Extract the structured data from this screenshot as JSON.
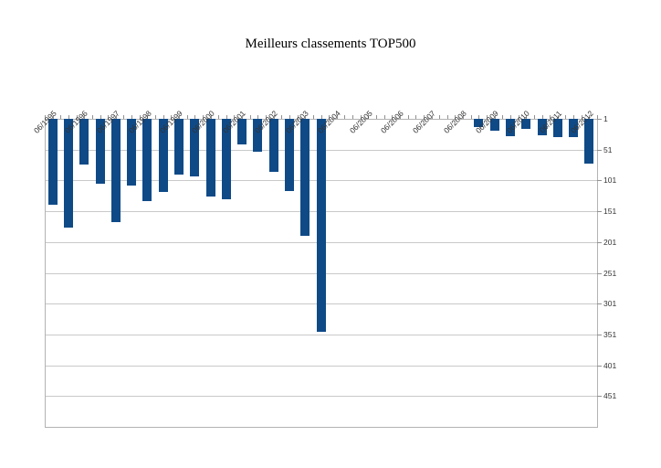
{
  "title": "Meilleurs classements TOP500",
  "chart_data": {
    "type": "bar",
    "title": "Meilleurs classements TOP500",
    "categories": [
      "06/1995",
      "11/1995",
      "06/1996",
      "11/1996",
      "06/1997",
      "11/1997",
      "06/1998",
      "11/1998",
      "06/1999",
      "11/1999",
      "06/2000",
      "11/2000",
      "06/2001",
      "11/2001",
      "06/2002",
      "11/2002",
      "06/2003",
      "11/2003",
      "06/2004",
      "11/2004",
      "06/2005",
      "11/2005",
      "06/2006",
      "11/2006",
      "06/2007",
      "11/2007",
      "06/2008",
      "11/2008",
      "06/2009",
      "11/2009",
      "06/2010",
      "11/2010",
      "06/2011",
      "11/2011",
      "06/2012"
    ],
    "values": [
      140,
      177,
      75,
      106,
      168,
      109,
      135,
      120,
      92,
      95,
      127,
      132,
      42,
      55,
      87,
      118,
      191,
      346,
      null,
      null,
      null,
      null,
      null,
      null,
      null,
      null,
      null,
      14,
      21,
      29,
      17,
      27,
      30,
      30,
      73
    ],
    "x_axis": {
      "position": "top",
      "label_rotation_deg": 45,
      "visible_tick_labels": [
        "06/1995",
        "06/1996",
        "06/1997",
        "06/1998",
        "06/1999",
        "06/2000",
        "06/2001",
        "06/2002",
        "06/2003",
        "06/2004",
        "06/2005",
        "06/2006",
        "06/2007",
        "06/2008",
        "06/2009",
        "06/2010",
        "06/2011",
        "06/2012"
      ]
    },
    "y_axis": {
      "side": "right",
      "reversed": true,
      "min": 1,
      "max": 501,
      "tick_interval": 50,
      "tick_labels": [
        "1",
        "51",
        "101",
        "151",
        "201",
        "251",
        "301",
        "351",
        "401",
        "451"
      ]
    },
    "xlabel": "",
    "ylabel": "",
    "legend": "none",
    "grid": "horizontal",
    "colors": {
      "bar": "#0F4A87",
      "gridline": "#C9C9C9",
      "plot_border": "#B3B3B3",
      "tick": "#919191",
      "axis_text": "#333333",
      "title_text": "#000000",
      "background": "#FFFFFF"
    }
  }
}
